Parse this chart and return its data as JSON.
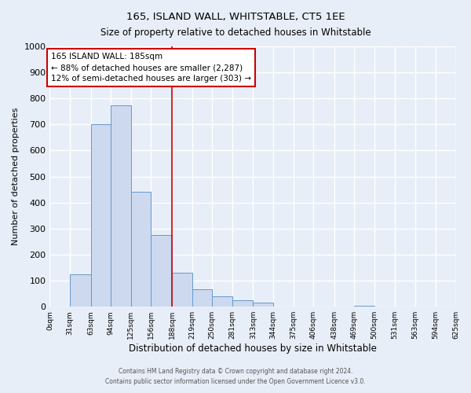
{
  "title": "165, ISLAND WALL, WHITSTABLE, CT5 1EE",
  "subtitle": "Size of property relative to detached houses in Whitstable",
  "xlabel": "Distribution of detached houses by size in Whitstable",
  "ylabel": "Number of detached properties",
  "bin_edges": [
    0,
    31,
    63,
    94,
    125,
    156,
    188,
    219,
    250,
    281,
    313,
    344,
    375,
    406,
    438,
    469,
    500,
    531,
    563,
    594,
    625
  ],
  "bar_heights": [
    0,
    125,
    700,
    775,
    440,
    275,
    130,
    68,
    40,
    25,
    15,
    0,
    0,
    0,
    0,
    5,
    0,
    0,
    0,
    0
  ],
  "bar_face_color": "#ccd9ef",
  "bar_edge_color": "#6699cc",
  "vline_x": 188,
  "vline_color": "#cc0000",
  "ylim": [
    0,
    1000
  ],
  "yticks": [
    0,
    100,
    200,
    300,
    400,
    500,
    600,
    700,
    800,
    900,
    1000
  ],
  "annotation_text": "165 ISLAND WALL: 185sqm\n← 88% of detached houses are smaller (2,287)\n12% of semi-detached houses are larger (303) →",
  "annotation_box_facecolor": "#ffffff",
  "annotation_box_edgecolor": "#cc0000",
  "footer_line1": "Contains HM Land Registry data © Crown copyright and database right 2024.",
  "footer_line2": "Contains public sector information licensed under the Open Government Licence v3.0.",
  "background_color": "#e8eef8",
  "grid_color": "#ffffff",
  "title_fontsize": 9.5,
  "subtitle_fontsize": 8.5,
  "ylabel_fontsize": 8,
  "xlabel_fontsize": 8.5
}
